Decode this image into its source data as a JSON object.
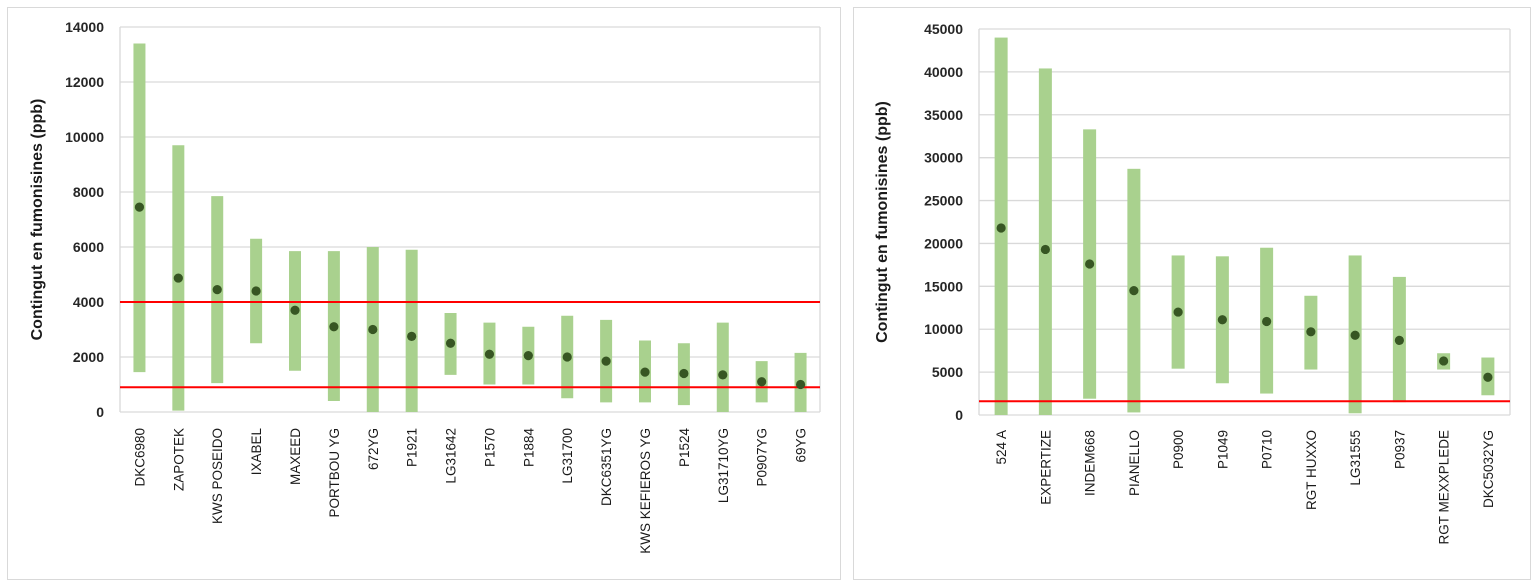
{
  "colors": {
    "bar": "#a9d18e",
    "mean": "#375623",
    "threshold": "#ff0000",
    "highlight_label": "#ed7d31",
    "label": "#1a1a1a",
    "grid": "#d9d9d9"
  },
  "chart_data": [
    {
      "type": "range-bar",
      "ylabel": "Contingut en fumonisines (ppb)",
      "ylim": [
        0,
        14000
      ],
      "yticks": [
        0,
        2000,
        4000,
        6000,
        8000,
        10000,
        12000,
        14000
      ],
      "grid": true,
      "thresholds": [
        4000,
        900
      ],
      "categories": [
        "DKC6980",
        "ZAPOTEK",
        "KWS POSEIDO",
        "IXABEL",
        "MAXEED",
        "PORTBOU YG",
        "672YG",
        "P1921",
        "LG31642",
        "P1570",
        "P1884",
        "LG31700",
        "DKC6351YG",
        "KWS KEFIEROS YG",
        "P1524",
        "LG31710YG",
        "P0907YG",
        "69YG"
      ],
      "highlighted": [
        false,
        false,
        false,
        false,
        false,
        true,
        true,
        false,
        false,
        false,
        false,
        false,
        true,
        true,
        false,
        true,
        true,
        true
      ],
      "min": [
        1450,
        50,
        1050,
        2500,
        1500,
        400,
        0,
        0,
        1350,
        1000,
        1000,
        500,
        350,
        350,
        250,
        0,
        350,
        0
      ],
      "mean": [
        7450,
        4870,
        4450,
        4400,
        3700,
        3100,
        3000,
        2750,
        2500,
        2100,
        2050,
        2000,
        1850,
        1450,
        1400,
        1350,
        1100,
        1000
      ],
      "max": [
        13400,
        9700,
        7850,
        6300,
        5850,
        5850,
        6000,
        5900,
        3600,
        3250,
        3100,
        3500,
        3350,
        2600,
        2500,
        3250,
        1850,
        2150
      ]
    },
    {
      "type": "range-bar",
      "ylabel": "Contingut en fumonisines (ppb)",
      "ylim": [
        0,
        45000
      ],
      "yticks": [
        0,
        5000,
        10000,
        15000,
        20000,
        25000,
        30000,
        35000,
        40000,
        45000
      ],
      "grid": true,
      "thresholds": [
        1600
      ],
      "categories": [
        "524 A",
        "EXPERTIZE",
        "INDEM668",
        "PIANELLO",
        "P0900",
        "P1049",
        "P0710",
        "RGT HUXXO",
        "LG31555",
        "P0937",
        "RGT MEXXPLEDE",
        "DKC5032YG"
      ],
      "highlighted": [
        false,
        false,
        false,
        false,
        false,
        false,
        false,
        false,
        false,
        false,
        false,
        true
      ],
      "min": [
        0,
        0,
        1900,
        300,
        5400,
        3700,
        2500,
        5300,
        200,
        1500,
        5300,
        2300
      ],
      "mean": [
        21800,
        19300,
        17600,
        14500,
        12000,
        11100,
        10900,
        9700,
        9300,
        8700,
        6300,
        4400
      ],
      "max": [
        44000,
        40400,
        33300,
        28700,
        18600,
        18500,
        19500,
        13900,
        18600,
        16100,
        7200,
        6700
      ]
    }
  ]
}
